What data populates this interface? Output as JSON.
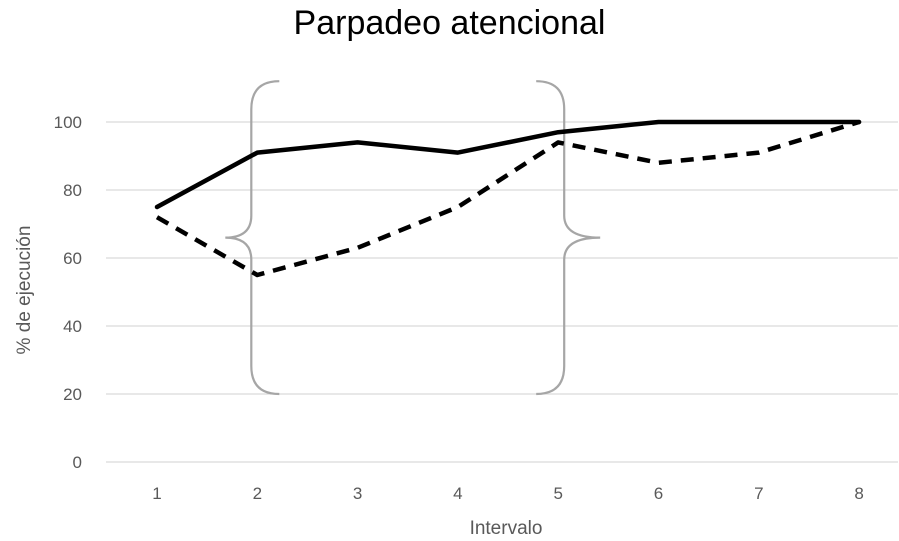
{
  "chart_data": {
    "type": "line",
    "title": "Parpadeo atencional",
    "xlabel": "Intervalo",
    "ylabel": "% de ejecución",
    "categories": [
      "1",
      "2",
      "3",
      "4",
      "5",
      "6",
      "7",
      "8"
    ],
    "ylim": [
      0,
      110
    ],
    "yticks": [
      "0",
      "20",
      "40",
      "60",
      "80",
      "100"
    ],
    "grid": true,
    "legend": "none",
    "series": [
      {
        "style": "solid",
        "color": "#000000",
        "values": [
          75,
          91,
          94,
          91,
          97,
          100,
          100,
          100
        ]
      },
      {
        "style": "dashed",
        "color": "#000000",
        "values": [
          72,
          55,
          63,
          75,
          94,
          88,
          91,
          100
        ]
      }
    ],
    "annotations": [
      {
        "type": "brace",
        "side": "left",
        "at_x": "2",
        "y_range": [
          20,
          112
        ]
      },
      {
        "type": "brace",
        "side": "right",
        "at_x": "5",
        "y_range": [
          20,
          112
        ]
      }
    ],
    "colors": {
      "grid": "#d9d9d9",
      "text": "#595959",
      "brace": "#a6a6a6"
    }
  }
}
